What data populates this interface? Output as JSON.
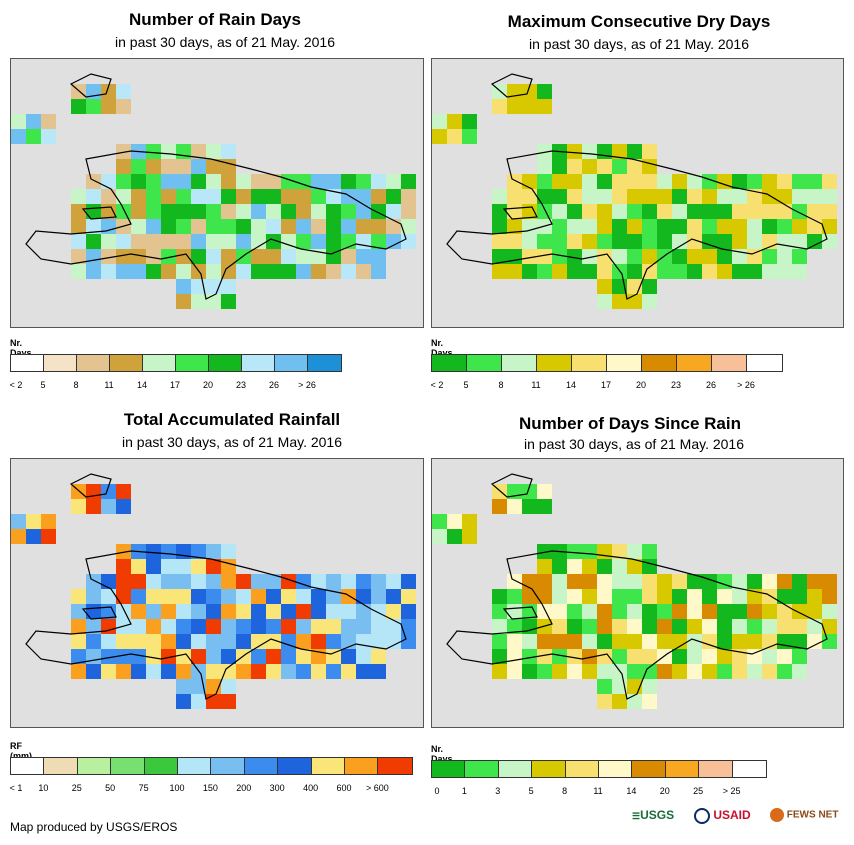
{
  "panels": [
    {
      "id": "rain-days",
      "title": "Number of Rain Days",
      "subtitle": "in past 30 days, as of 21 May. 2016",
      "legend": {
        "title": "Nr. Days",
        "colors": [
          "#ffffff",
          "#f5e3c8",
          "#e3c490",
          "#cfa23c",
          "#c8f5c8",
          "#3fe64b",
          "#13b81e",
          "#b8e8f8",
          "#6fc0f0",
          "#1e90d8"
        ],
        "labels": [
          "< 2",
          "5",
          "8",
          "11",
          "14",
          "17",
          "20",
          "23",
          "26",
          "> 26"
        ]
      }
    },
    {
      "id": "max-dry-days",
      "title": "Maximum Consecutive Dry Days",
      "subtitle": "in past 30 days, as of 21 May. 2016",
      "legend": {
        "title": "Nr. Days",
        "colors": [
          "#13b81e",
          "#3fe64b",
          "#c8f5c8",
          "#d8c800",
          "#f8e070",
          "#fff8c8",
          "#d88a00",
          "#f8a820",
          "#f8c098",
          "#ffffff"
        ],
        "labels": [
          "< 2",
          "5",
          "8",
          "11",
          "14",
          "17",
          "20",
          "23",
          "26",
          "> 26"
        ]
      }
    },
    {
      "id": "accum-rainfall",
      "title": "Total Accumulated Rainfall",
      "subtitle": "in past 30 days, as of 21 May. 2016",
      "legend": {
        "title": "RF (mm)",
        "colors": [
          "#ffffff",
          "#f0dcb4",
          "#b8f0a0",
          "#78e070",
          "#3cc83c",
          "#b4e6f8",
          "#78beF0",
          "#3c8cf0",
          "#1e64dc",
          "#fae678",
          "#faa01e",
          "#f03c00"
        ],
        "labels": [
          "< 1",
          "10",
          "25",
          "50",
          "75",
          "100",
          "150",
          "200",
          "300",
          "400",
          "600",
          "> 600"
        ]
      }
    },
    {
      "id": "days-since-rain",
      "title": "Number of Days Since Rain",
      "subtitle": "in past 30 days, as of 21 May. 2016",
      "legend": {
        "title": "Nr. Days",
        "colors": [
          "#13b81e",
          "#3fe64b",
          "#c8f5c8",
          "#d8c800",
          "#f8e070",
          "#fff8c8",
          "#d88a00",
          "#f8a820",
          "#f8c098",
          "#ffffff"
        ],
        "labels": [
          "0",
          "1",
          "3",
          "5",
          "8",
          "11",
          "14",
          "20",
          "25",
          "> 25"
        ]
      }
    }
  ],
  "credit": "Map produced by USGS/EROS",
  "logos": {
    "usgs": "USGS",
    "usaid": "USAID",
    "fewsnet": "FEWS NET"
  }
}
